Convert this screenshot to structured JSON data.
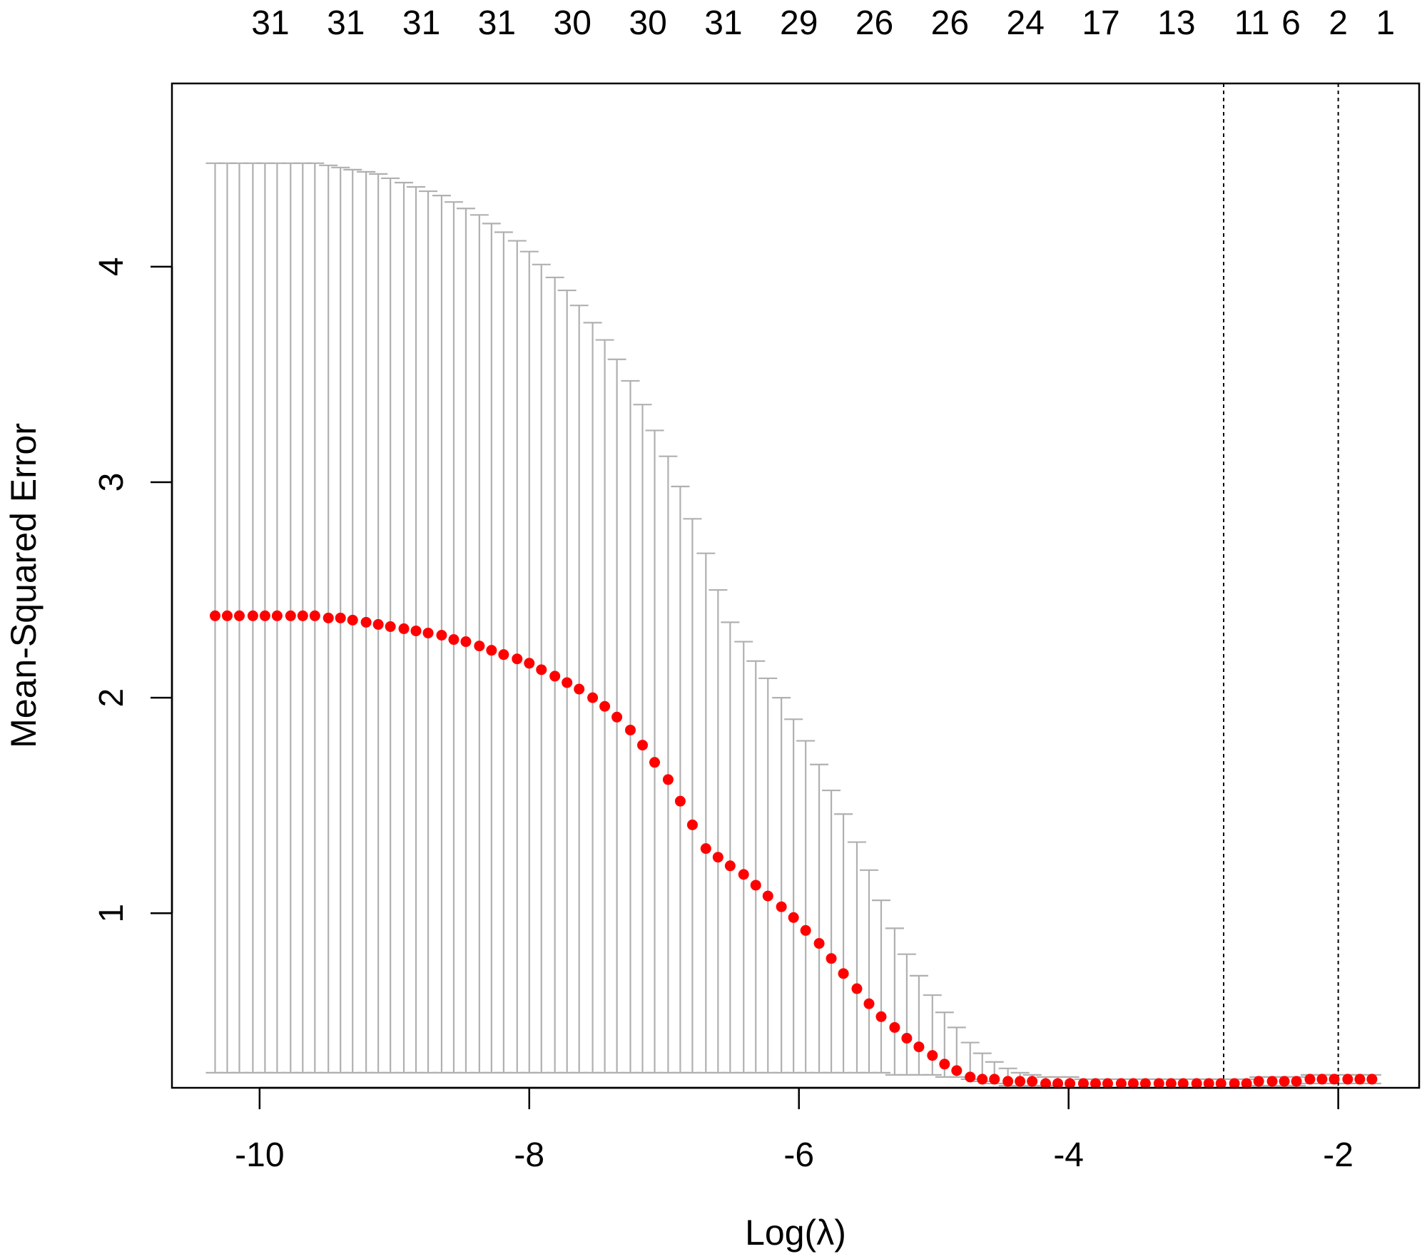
{
  "chart_data": {
    "type": "scatter",
    "xlabel": "Log(λ)",
    "ylabel": "Mean-Squared Error",
    "xlim": [
      -10.65,
      -1.4
    ],
    "ylim": [
      0.19,
      4.85
    ],
    "x_ticks": [
      -10,
      -8,
      -6,
      -4,
      -2
    ],
    "y_ticks": [
      1,
      2,
      3,
      4
    ],
    "top_axis": {
      "positions": [
        -9.92,
        -9.36,
        -8.8,
        -8.24,
        -7.68,
        -7.12,
        -6.56,
        -6.0,
        -5.44,
        -4.88,
        -4.32,
        -3.76,
        -3.2,
        -2.64,
        -2.35,
        -2.0,
        -1.65
      ],
      "labels": [
        "31",
        "31",
        "31",
        "31",
        "30",
        "30",
        "31",
        "29",
        "26",
        "26",
        "24",
        "17",
        "13",
        "11",
        "6",
        "2",
        "1"
      ]
    },
    "vlines": [
      -2.85,
      -2.0
    ],
    "grid": false,
    "legend": "none",
    "points": {
      "x": [
        -10.33,
        -10.24,
        -10.15,
        -10.05,
        -9.96,
        -9.87,
        -9.77,
        -9.68,
        -9.59,
        -9.49,
        -9.4,
        -9.31,
        -9.21,
        -9.12,
        -9.03,
        -8.93,
        -8.84,
        -8.75,
        -8.65,
        -8.56,
        -8.47,
        -8.37,
        -8.28,
        -8.19,
        -8.09,
        -8.0,
        -7.91,
        -7.81,
        -7.72,
        -7.63,
        -7.53,
        -7.44,
        -7.35,
        -7.25,
        -7.16,
        -7.07,
        -6.97,
        -6.88,
        -6.79,
        -6.69,
        -6.6,
        -6.51,
        -6.41,
        -6.32,
        -6.23,
        -6.13,
        -6.04,
        -5.95,
        -5.85,
        -5.76,
        -5.67,
        -5.57,
        -5.48,
        -5.39,
        -5.29,
        -5.2,
        -5.11,
        -5.01,
        -4.92,
        -4.83,
        -4.73,
        -4.64,
        -4.55,
        -4.45,
        -4.36,
        -4.27,
        -4.17,
        -4.08,
        -3.99,
        -3.89,
        -3.8,
        -3.71,
        -3.61,
        -3.52,
        -3.43,
        -3.33,
        -3.24,
        -3.15,
        -3.05,
        -2.96,
        -2.87,
        -2.77,
        -2.68,
        -2.59,
        -2.49,
        -2.4,
        -2.31,
        -2.21,
        -2.12,
        -2.03,
        -1.93,
        -1.84,
        -1.75
      ],
      "mse": [
        2.38,
        2.38,
        2.38,
        2.38,
        2.38,
        2.38,
        2.38,
        2.38,
        2.38,
        2.37,
        2.37,
        2.36,
        2.35,
        2.34,
        2.33,
        2.32,
        2.31,
        2.3,
        2.29,
        2.27,
        2.26,
        2.24,
        2.22,
        2.2,
        2.18,
        2.16,
        2.13,
        2.1,
        2.07,
        2.04,
        2.0,
        1.96,
        1.91,
        1.85,
        1.78,
        1.7,
        1.62,
        1.52,
        1.41,
        1.3,
        1.26,
        1.22,
        1.18,
        1.13,
        1.08,
        1.03,
        0.98,
        0.92,
        0.86,
        0.79,
        0.72,
        0.65,
        0.58,
        0.52,
        0.47,
        0.42,
        0.38,
        0.34,
        0.3,
        0.27,
        0.24,
        0.23,
        0.23,
        0.22,
        0.22,
        0.22,
        0.21,
        0.21,
        0.21,
        0.21,
        0.21,
        0.21,
        0.21,
        0.21,
        0.21,
        0.21,
        0.21,
        0.21,
        0.21,
        0.21,
        0.21,
        0.21,
        0.21,
        0.22,
        0.22,
        0.22,
        0.22,
        0.23,
        0.23,
        0.23,
        0.23,
        0.23,
        0.23
      ],
      "upper": [
        4.48,
        4.48,
        4.48,
        4.48,
        4.48,
        4.48,
        4.48,
        4.48,
        4.48,
        4.47,
        4.46,
        4.45,
        4.44,
        4.43,
        4.41,
        4.39,
        4.37,
        4.35,
        4.33,
        4.3,
        4.27,
        4.24,
        4.2,
        4.16,
        4.12,
        4.07,
        4.01,
        3.95,
        3.89,
        3.82,
        3.74,
        3.66,
        3.57,
        3.47,
        3.36,
        3.24,
        3.12,
        2.98,
        2.83,
        2.67,
        2.5,
        2.35,
        2.26,
        2.17,
        2.09,
        2.0,
        1.9,
        1.8,
        1.69,
        1.57,
        1.46,
        1.33,
        1.2,
        1.06,
        0.93,
        0.81,
        0.71,
        0.62,
        0.54,
        0.47,
        0.4,
        0.35,
        0.31,
        0.28,
        0.26,
        0.25,
        0.24,
        0.24,
        0.24,
        0.23,
        0.23,
        0.23,
        0.23,
        0.23,
        0.23,
        0.23,
        0.23,
        0.23,
        0.23,
        0.23,
        0.23,
        0.23,
        0.23,
        0.24,
        0.24,
        0.24,
        0.24,
        0.25,
        0.25,
        0.25,
        0.25,
        0.25,
        0.25
      ],
      "lower": [
        0.26,
        0.26,
        0.26,
        0.26,
        0.26,
        0.26,
        0.26,
        0.26,
        0.26,
        0.26,
        0.26,
        0.26,
        0.26,
        0.26,
        0.26,
        0.26,
        0.26,
        0.26,
        0.26,
        0.26,
        0.26,
        0.26,
        0.26,
        0.26,
        0.26,
        0.26,
        0.26,
        0.26,
        0.26,
        0.26,
        0.26,
        0.26,
        0.26,
        0.26,
        0.26,
        0.26,
        0.26,
        0.26,
        0.26,
        0.26,
        0.26,
        0.26,
        0.26,
        0.26,
        0.26,
        0.26,
        0.26,
        0.26,
        0.26,
        0.26,
        0.26,
        0.26,
        0.26,
        0.26,
        0.25,
        0.25,
        0.25,
        0.25,
        0.24,
        0.24,
        0.23,
        0.22,
        0.21,
        0.2,
        0.2,
        0.2,
        0.2,
        0.19,
        0.19,
        0.19,
        0.19,
        0.19,
        0.19,
        0.19,
        0.19,
        0.19,
        0.19,
        0.19,
        0.19,
        0.19,
        0.19,
        0.19,
        0.19,
        0.2,
        0.2,
        0.2,
        0.2,
        0.21,
        0.21,
        0.21,
        0.21,
        0.21,
        0.21
      ]
    },
    "colors": {
      "points": "#ff0000",
      "error_bars": "#b0b0b0",
      "axes": "#000000",
      "vlines": "#000000"
    }
  }
}
